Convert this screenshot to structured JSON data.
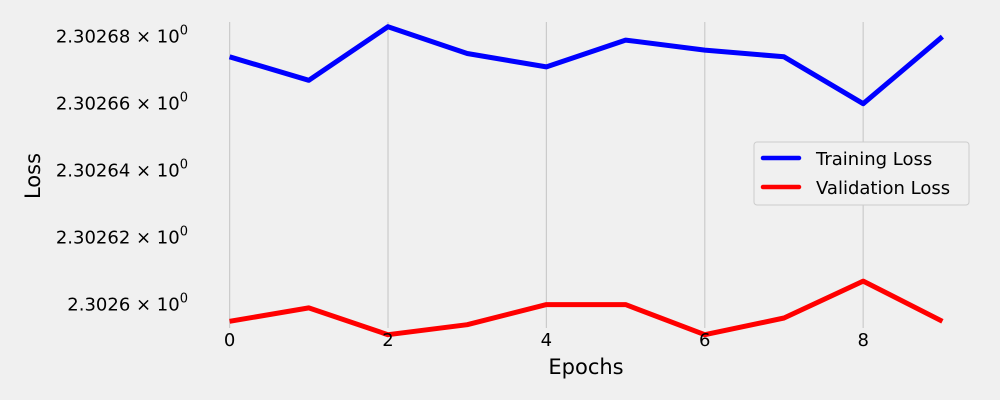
{
  "chart_data": {
    "type": "line",
    "title": "",
    "xlabel": "Epochs",
    "ylabel": "Loss",
    "x": [
      0,
      1,
      2,
      3,
      4,
      5,
      6,
      7,
      8,
      9
    ],
    "xlim": [
      -0.45,
      9.45
    ],
    "ylim": [
      2.302593,
      2.302685
    ],
    "y_scale": "log",
    "x_ticks": [
      {
        "value": 0,
        "label": "0"
      },
      {
        "value": 2,
        "label": "2"
      },
      {
        "value": 4,
        "label": "4"
      },
      {
        "value": 6,
        "label": "6"
      },
      {
        "value": 8,
        "label": "8"
      }
    ],
    "y_ticks": [
      {
        "value": 2.3026,
        "mantissa": "2.3026",
        "times": "×",
        "base": "10",
        "exp": "0"
      },
      {
        "value": 2.30262,
        "mantissa": "2.30262",
        "times": "×",
        "base": "10",
        "exp": "0"
      },
      {
        "value": 2.30264,
        "mantissa": "2.30264",
        "times": "×",
        "base": "10",
        "exp": "0"
      },
      {
        "value": 2.30266,
        "mantissa": "2.30266",
        "times": "×",
        "base": "10",
        "exp": "0"
      },
      {
        "value": 2.30268,
        "mantissa": "2.30268",
        "times": "×",
        "base": "10",
        "exp": "0"
      }
    ],
    "grid": {
      "vertical": true,
      "horizontal": false
    },
    "legend_position": "right",
    "series": [
      {
        "name": "Training Loss",
        "color": "#0000ff",
        "values": [
          2.302674,
          2.302667,
          2.302683,
          2.302675,
          2.302671,
          2.302679,
          2.302676,
          2.302674,
          2.30266,
          2.30268
        ]
      },
      {
        "name": "Validation Loss",
        "color": "#ff0000",
        "values": [
          2.302595,
          2.302599,
          2.302591,
          2.302594,
          2.3026,
          2.3026,
          2.302591,
          2.302596,
          2.302607,
          2.302595
        ]
      }
    ]
  }
}
